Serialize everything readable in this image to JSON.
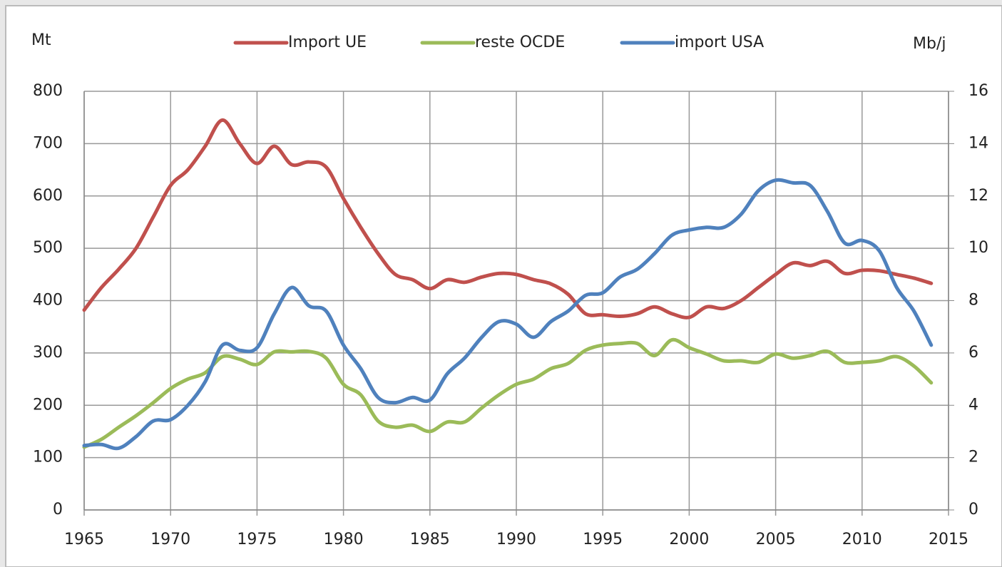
{
  "chart_data": {
    "type": "line",
    "y_label": "Mt",
    "y2_label": "Mb/j",
    "x": [
      1965,
      1966,
      1967,
      1968,
      1969,
      1970,
      1971,
      1972,
      1973,
      1974,
      1975,
      1976,
      1977,
      1978,
      1979,
      1980,
      1981,
      1982,
      1983,
      1984,
      1985,
      1986,
      1987,
      1988,
      1989,
      1990,
      1991,
      1992,
      1993,
      1994,
      1995,
      1996,
      1997,
      1998,
      1999,
      2000,
      2001,
      2002,
      2003,
      2004,
      2005,
      2006,
      2007,
      2008,
      2009,
      2010,
      2011,
      2012,
      2013,
      2014
    ],
    "xlim": [
      1965,
      2015
    ],
    "xticks": [
      1965,
      1970,
      1975,
      1980,
      1985,
      1990,
      1995,
      2000,
      2005,
      2010,
      2015
    ],
    "ylim": [
      0,
      800
    ],
    "yticks": [
      0,
      100,
      200,
      300,
      400,
      500,
      600,
      700,
      800
    ],
    "y2lim": [
      0,
      16
    ],
    "y2ticks": [
      0,
      2,
      4,
      6,
      8,
      10,
      12,
      14,
      16
    ],
    "grid": true,
    "legend": "top",
    "series": [
      {
        "name": "Import UE",
        "color": "#c0504d",
        "values": [
          382,
          425,
          460,
          500,
          560,
          620,
          650,
          695,
          745,
          700,
          662,
          695,
          660,
          665,
          655,
          595,
          540,
          490,
          450,
          440,
          423,
          440,
          435,
          445,
          452,
          450,
          440,
          432,
          412,
          375,
          373,
          370,
          375,
          388,
          375,
          368,
          388,
          385,
          400,
          425,
          450,
          472,
          467,
          475,
          452,
          458,
          457,
          450,
          443,
          433
        ]
      },
      {
        "name": "reste OCDE",
        "color": "#9bbb59",
        "values": [
          120,
          135,
          158,
          180,
          205,
          232,
          250,
          262,
          293,
          288,
          278,
          302,
          302,
          303,
          290,
          240,
          220,
          170,
          158,
          162,
          150,
          168,
          168,
          195,
          220,
          240,
          250,
          270,
          280,
          305,
          315,
          318,
          318,
          295,
          325,
          310,
          298,
          285,
          285,
          282,
          298,
          290,
          295,
          303,
          282,
          282,
          285,
          293,
          275,
          243
        ]
      },
      {
        "name": "import USA",
        "color": "#4f81bd",
        "axis": "y2",
        "values": [
          2.46,
          2.5,
          2.36,
          2.8,
          3.4,
          3.45,
          4.0,
          4.9,
          6.3,
          6.1,
          6.2,
          7.5,
          8.5,
          7.8,
          7.6,
          6.3,
          5.4,
          4.3,
          4.1,
          4.3,
          4.2,
          5.2,
          5.8,
          6.6,
          7.2,
          7.1,
          6.6,
          7.2,
          7.6,
          8.2,
          8.3,
          8.9,
          9.2,
          9.8,
          10.5,
          10.7,
          10.8,
          10.8,
          11.3,
          12.2,
          12.6,
          12.5,
          12.4,
          11.4,
          10.2,
          10.3,
          9.9,
          8.5,
          7.6,
          6.3
        ]
      }
    ]
  }
}
